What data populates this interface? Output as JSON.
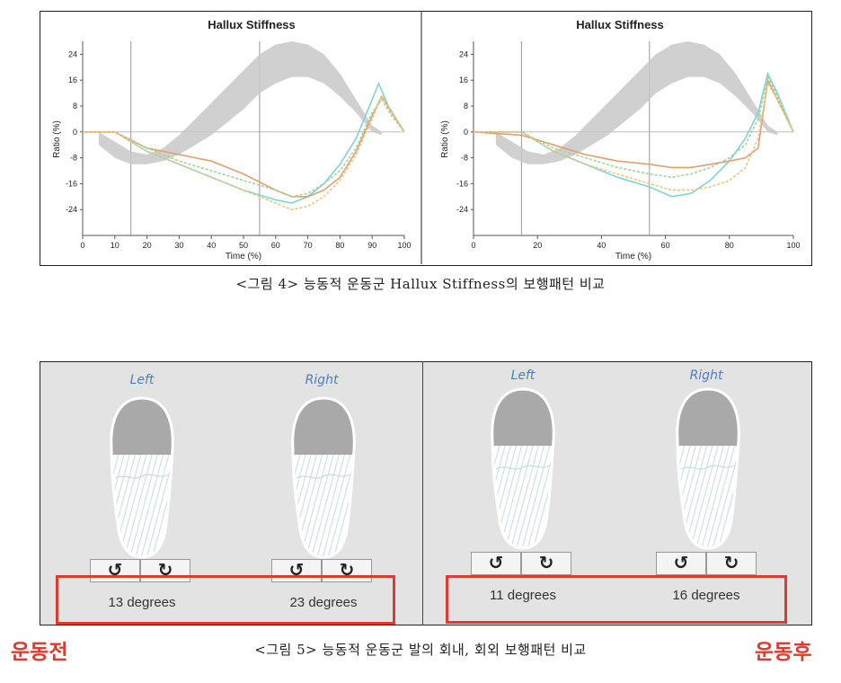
{
  "figure4": {
    "caption": "<그림 4> 능동적 운동군 Hallux Stiffness의 보행패턴 비교",
    "charts": [
      {
        "title": "Hallux Stiffness",
        "ylabel": "Ratio (%)",
        "xlabel": "Time (%)",
        "xticks": [
          0,
          10,
          20,
          30,
          40,
          50,
          60,
          70,
          80,
          90,
          100
        ],
        "yticks": [
          24,
          16,
          8,
          0,
          -8,
          -16,
          -24
        ]
      },
      {
        "title": "Hallux Stiffness",
        "ylabel": "Ratio (%)",
        "xlabel": "Time (%)",
        "xticks": [
          0,
          20,
          40,
          60,
          80,
          100
        ],
        "yticks": [
          24,
          16,
          8,
          0,
          -8,
          -16,
          -24
        ]
      }
    ]
  },
  "chart_data": [
    {
      "type": "line",
      "title": "Hallux Stiffness",
      "xlabel": "Time (%)",
      "ylabel": "Ratio (%)",
      "xlim": [
        0,
        100
      ],
      "ylim": [
        -32,
        28
      ],
      "grid": false,
      "vlines": [
        15,
        55
      ],
      "normal_band": {
        "x": [
          5,
          10,
          15,
          20,
          25,
          30,
          35,
          40,
          45,
          50,
          55,
          60,
          65,
          70,
          75,
          80,
          85,
          90,
          93
        ],
        "upper": [
          0,
          -3,
          -6,
          -7,
          -5,
          -1,
          4,
          9,
          14,
          19,
          24,
          27,
          28,
          27,
          24,
          18,
          10,
          2,
          0
        ],
        "lower": [
          -4,
          -8,
          -10,
          -10,
          -9,
          -7,
          -4,
          -1,
          3,
          7,
          12,
          15,
          17,
          17,
          15,
          11,
          6,
          0,
          -1
        ]
      },
      "series": [
        {
          "color": "#7fd3d6",
          "x": [
            0,
            10,
            20,
            30,
            40,
            50,
            60,
            65,
            70,
            75,
            80,
            85,
            90,
            92,
            95,
            100
          ],
          "y": [
            0,
            0,
            -6,
            -10,
            -14,
            -18,
            -21,
            -22,
            -20,
            -16,
            -10,
            -2,
            10,
            15,
            8,
            0
          ]
        },
        {
          "color": "#e0a070",
          "x": [
            0,
            10,
            20,
            30,
            40,
            50,
            60,
            65,
            70,
            75,
            80,
            85,
            90,
            93,
            96,
            100
          ],
          "y": [
            0,
            0,
            -5,
            -7,
            -9,
            -13,
            -18,
            -20,
            -20,
            -18,
            -14,
            -6,
            5,
            11,
            6,
            0
          ]
        },
        {
          "color": "#9fd49a",
          "x": [
            0,
            10,
            20,
            30,
            40,
            50,
            60,
            65,
            70,
            75,
            80,
            85,
            90,
            93,
            96,
            100
          ],
          "y": [
            0,
            0,
            -5,
            -9,
            -12,
            -15,
            -18,
            -20,
            -19,
            -16,
            -12,
            -5,
            6,
            10,
            5,
            0
          ]
        },
        {
          "color": "#f2c27a",
          "x": [
            0,
            10,
            20,
            30,
            40,
            50,
            60,
            65,
            70,
            75,
            80,
            85,
            90,
            93,
            96,
            100
          ],
          "y": [
            0,
            0,
            -6,
            -10,
            -14,
            -18,
            -22,
            -24,
            -23,
            -20,
            -15,
            -7,
            4,
            11,
            6,
            0
          ]
        }
      ]
    },
    {
      "type": "line",
      "title": "Hallux Stiffness",
      "xlabel": "Time (%)",
      "ylabel": "Ratio (%)",
      "xlim": [
        0,
        100
      ],
      "ylim": [
        -32,
        28
      ],
      "grid": false,
      "vlines": [
        15,
        55
      ],
      "normal_band": {
        "x": [
          7,
          12,
          17,
          22,
          27,
          32,
          37,
          42,
          47,
          52,
          57,
          62,
          67,
          72,
          77,
          82,
          87,
          92,
          95
        ],
        "upper": [
          0,
          -3,
          -6,
          -7,
          -5,
          -1,
          4,
          9,
          14,
          19,
          24,
          27,
          28,
          27,
          24,
          18,
          10,
          2,
          0
        ],
        "lower": [
          -4,
          -8,
          -10,
          -10,
          -9,
          -7,
          -4,
          -1,
          3,
          7,
          12,
          15,
          17,
          17,
          15,
          11,
          6,
          0,
          -1
        ]
      },
      "series": [
        {
          "color": "#7fd3d6",
          "x": [
            0,
            15,
            25,
            35,
            45,
            55,
            62,
            68,
            74,
            80,
            85,
            89,
            92,
            95,
            100
          ],
          "y": [
            0,
            0,
            -6,
            -10,
            -14,
            -17,
            -20,
            -19,
            -15,
            -9,
            -2,
            6,
            18,
            12,
            0
          ]
        },
        {
          "color": "#e0a070",
          "x": [
            0,
            15,
            25,
            35,
            45,
            55,
            62,
            68,
            74,
            80,
            85,
            89,
            92,
            95,
            100
          ],
          "y": [
            0,
            -1,
            -4,
            -7,
            -9,
            -10,
            -11,
            -11,
            -10,
            -9,
            -8,
            -5,
            16,
            10,
            0
          ]
        },
        {
          "color": "#9fd49a",
          "x": [
            0,
            15,
            25,
            35,
            45,
            55,
            62,
            68,
            74,
            80,
            85,
            89,
            92,
            95,
            100
          ],
          "y": [
            0,
            0,
            -5,
            -8,
            -11,
            -13,
            -14,
            -13,
            -11,
            -8,
            -4,
            4,
            17,
            11,
            0
          ]
        },
        {
          "color": "#f2c27a",
          "x": [
            0,
            15,
            25,
            35,
            45,
            55,
            62,
            68,
            74,
            80,
            85,
            89,
            92,
            95,
            100
          ],
          "y": [
            0,
            0,
            -6,
            -10,
            -13,
            -16,
            -18,
            -18,
            -17,
            -15,
            -11,
            -2,
            15,
            10,
            0
          ]
        }
      ]
    }
  ],
  "figure5": {
    "caption": "<그림 5> 능동적 운동군 발의 회내, 회외 보행패턴 비교",
    "before_label": "운동전",
    "after_label": "운동후",
    "panels": [
      {
        "left_label": "Left",
        "right_label": "Right",
        "left_degrees": "13 degrees",
        "right_degrees": "23 degrees"
      },
      {
        "left_label": "Left",
        "right_label": "Right",
        "left_degrees": "11 degrees",
        "right_degrees": "16 degrees"
      }
    ],
    "buttons": {
      "rotate_ccw": "↺",
      "rotate_cw": "↻"
    },
    "colors": {
      "label_blue": "#4a7fc1",
      "highlight_red": "#e03a2e",
      "panel_bg": "#e3e3e3"
    }
  }
}
